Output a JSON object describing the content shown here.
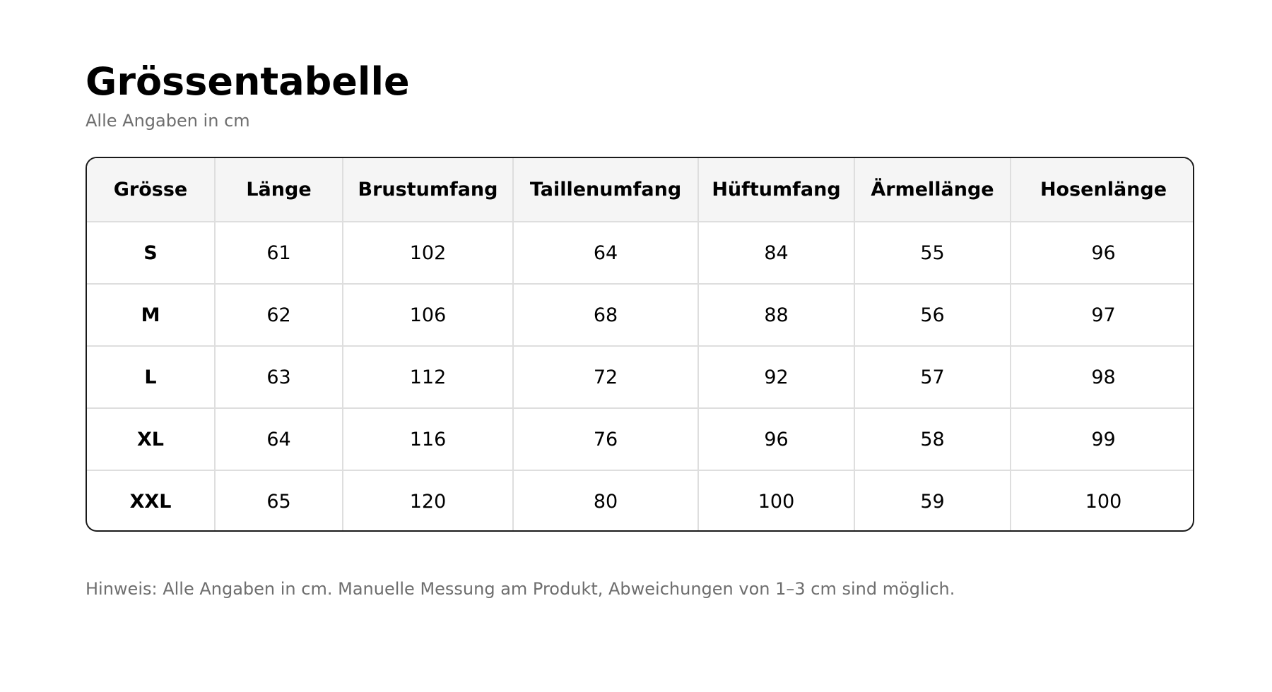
{
  "header": {
    "title": "Grössentabelle",
    "subtitle": "Alle Angaben in cm"
  },
  "table": {
    "columns": [
      "Grösse",
      "Länge",
      "Brustumfang",
      "Taillenumfang",
      "Hüftumfang",
      "Ärmellänge",
      "Hosenlänge"
    ],
    "rows": [
      [
        "S",
        "61",
        "102",
        "64",
        "84",
        "55",
        "96"
      ],
      [
        "M",
        "62",
        "106",
        "68",
        "88",
        "56",
        "97"
      ],
      [
        "L",
        "63",
        "112",
        "72",
        "92",
        "57",
        "98"
      ],
      [
        "XL",
        "64",
        "116",
        "76",
        "96",
        "58",
        "99"
      ],
      [
        "XXL",
        "65",
        "120",
        "80",
        "100",
        "59",
        "100"
      ]
    ]
  },
  "footer": {
    "note": "Hinweis: Alle Angaben in cm. Manuelle Messung am Produkt, Abweichungen von 1–3 cm sind möglich."
  },
  "colors": {
    "text": "#000000",
    "muted": "#6e6e6e",
    "header_bg": "#f5f5f5",
    "grid": "#dedede",
    "outer_border": "#1a1a1a"
  }
}
